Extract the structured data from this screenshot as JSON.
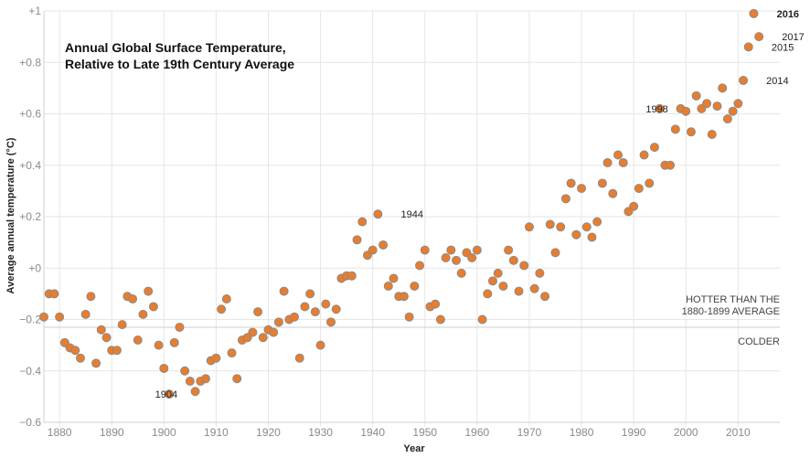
{
  "chart_data": {
    "type": "scatter",
    "title_lines": [
      "Annual Global Surface Temperature,",
      "Relative to Late 19th Century Average"
    ],
    "xlabel": "Year",
    "ylabel": "Average annual temperature (°C)",
    "xlim": [
      1877,
      2018
    ],
    "ylim": [
      -0.6,
      1
    ],
    "x_ticks": [
      {
        "value": 1880,
        "label": "1880"
      },
      {
        "value": 1890,
        "label": "1890"
      },
      {
        "value": 1900,
        "label": "1900"
      },
      {
        "value": 1910,
        "label": "1910"
      },
      {
        "value": 1920,
        "label": "1920"
      },
      {
        "value": 1930,
        "label": "1930"
      },
      {
        "value": 1940,
        "label": "1940"
      },
      {
        "value": 1950,
        "label": "1950"
      },
      {
        "value": 1960,
        "label": "1960"
      },
      {
        "value": 1970,
        "label": "1970"
      },
      {
        "value": 1980,
        "label": "1980"
      },
      {
        "value": 1990,
        "label": "1990"
      },
      {
        "value": 2000,
        "label": "2000"
      },
      {
        "value": 2010,
        "label": "2010"
      }
    ],
    "y_ticks": [
      {
        "value": 1,
        "label": "+1"
      },
      {
        "value": 0.8,
        "label": "+0.8"
      },
      {
        "value": 0.6,
        "label": "+0.6"
      },
      {
        "value": 0.4,
        "label": "+0.4"
      },
      {
        "value": 0.2,
        "label": "+0.2"
      },
      {
        "value": 0,
        "label": "+0"
      },
      {
        "value": -0.2,
        "label": "−0.2"
      },
      {
        "value": -0.4,
        "label": "−0.4"
      },
      {
        "value": -0.6,
        "label": "−0.6"
      }
    ],
    "grid": true,
    "reference_line": {
      "y": -0.23,
      "label_above": [
        "HOTTER THAN THE",
        "1880-1899 AVERAGE"
      ],
      "label_below": "COLDER"
    },
    "colors": {
      "point_fill": "#e87d2d",
      "point_stroke": "#8a8a8a",
      "grid": "#e6e6e6",
      "reference": "#c8c8c8"
    },
    "points": [
      {
        "x": 1877,
        "y": -0.19
      },
      {
        "x": 1878,
        "y": -0.1
      },
      {
        "x": 1879,
        "y": -0.1
      },
      {
        "x": 1880,
        "y": -0.19
      },
      {
        "x": 1881,
        "y": -0.29
      },
      {
        "x": 1882,
        "y": -0.31
      },
      {
        "x": 1883,
        "y": -0.32
      },
      {
        "x": 1884,
        "y": -0.35
      },
      {
        "x": 1885,
        "y": -0.18
      },
      {
        "x": 1886,
        "y": -0.11
      },
      {
        "x": 1887,
        "y": -0.37
      },
      {
        "x": 1888,
        "y": -0.24
      },
      {
        "x": 1889,
        "y": -0.27
      },
      {
        "x": 1890,
        "y": -0.32
      },
      {
        "x": 1891,
        "y": -0.32
      },
      {
        "x": 1892,
        "y": -0.22
      },
      {
        "x": 1893,
        "y": -0.11
      },
      {
        "x": 1894,
        "y": -0.12
      },
      {
        "x": 1895,
        "y": -0.28
      },
      {
        "x": 1896,
        "y": -0.18
      },
      {
        "x": 1897,
        "y": -0.09
      },
      {
        "x": 1898,
        "y": -0.15
      },
      {
        "x": 1899,
        "y": -0.3
      },
      {
        "x": 1900,
        "y": -0.39
      },
      {
        "x": 1901,
        "y": -0.49
      },
      {
        "x": 1902,
        "y": -0.29
      },
      {
        "x": 1903,
        "y": -0.23
      },
      {
        "x": 1904,
        "y": -0.4
      },
      {
        "x": 1905,
        "y": -0.44
      },
      {
        "x": 1906,
        "y": -0.48
      },
      {
        "x": 1907,
        "y": -0.44
      },
      {
        "x": 1908,
        "y": -0.43
      },
      {
        "x": 1909,
        "y": -0.36
      },
      {
        "x": 1910,
        "y": -0.35
      },
      {
        "x": 1911,
        "y": -0.16
      },
      {
        "x": 1912,
        "y": -0.12
      },
      {
        "x": 1913,
        "y": -0.33
      },
      {
        "x": 1914,
        "y": -0.43
      },
      {
        "x": 1915,
        "y": -0.28
      },
      {
        "x": 1916,
        "y": -0.27
      },
      {
        "x": 1917,
        "y": -0.25
      },
      {
        "x": 1918,
        "y": -0.17
      },
      {
        "x": 1919,
        "y": -0.27
      },
      {
        "x": 1920,
        "y": -0.24
      },
      {
        "x": 1921,
        "y": -0.25
      },
      {
        "x": 1922,
        "y": -0.21
      },
      {
        "x": 1923,
        "y": -0.09
      },
      {
        "x": 1924,
        "y": -0.2
      },
      {
        "x": 1925,
        "y": -0.19
      },
      {
        "x": 1926,
        "y": -0.35
      },
      {
        "x": 1927,
        "y": -0.15
      },
      {
        "x": 1928,
        "y": -0.1
      },
      {
        "x": 1929,
        "y": -0.17
      },
      {
        "x": 1930,
        "y": -0.3
      },
      {
        "x": 1931,
        "y": -0.14
      },
      {
        "x": 1932,
        "y": -0.21
      },
      {
        "x": 1933,
        "y": -0.16
      },
      {
        "x": 1934,
        "y": -0.04
      },
      {
        "x": 1935,
        "y": -0.03
      },
      {
        "x": 1936,
        "y": -0.03
      },
      {
        "x": 1937,
        "y": 0.11
      },
      {
        "x": 1938,
        "y": 0.18
      },
      {
        "x": 1939,
        "y": 0.05
      },
      {
        "x": 1940,
        "y": 0.07
      },
      {
        "x": 1941,
        "y": 0.21
      },
      {
        "x": 1942,
        "y": 0.09
      },
      {
        "x": 1943,
        "y": -0.07
      },
      {
        "x": 1944,
        "y": -0.04
      },
      {
        "x": 1945,
        "y": -0.11
      },
      {
        "x": 1946,
        "y": -0.11
      },
      {
        "x": 1947,
        "y": -0.19
      },
      {
        "x": 1948,
        "y": -0.07
      },
      {
        "x": 1949,
        "y": 0.01
      },
      {
        "x": 1950,
        "y": 0.07
      },
      {
        "x": 1951,
        "y": -0.15
      },
      {
        "x": 1952,
        "y": -0.14
      },
      {
        "x": 1953,
        "y": -0.2
      },
      {
        "x": 1954,
        "y": 0.04
      },
      {
        "x": 1955,
        "y": 0.07
      },
      {
        "x": 1956,
        "y": 0.03
      },
      {
        "x": 1957,
        "y": -0.02
      },
      {
        "x": 1958,
        "y": 0.06
      },
      {
        "x": 1959,
        "y": 0.04
      },
      {
        "x": 1960,
        "y": 0.07
      },
      {
        "x": 1961,
        "y": -0.2
      },
      {
        "x": 1962,
        "y": -0.1
      },
      {
        "x": 1963,
        "y": -0.05
      },
      {
        "x": 1964,
        "y": -0.02
      },
      {
        "x": 1965,
        "y": -0.07
      },
      {
        "x": 1966,
        "y": 0.07
      },
      {
        "x": 1967,
        "y": 0.03
      },
      {
        "x": 1968,
        "y": -0.09
      },
      {
        "x": 1969,
        "y": 0.01
      },
      {
        "x": 1970,
        "y": 0.16
      },
      {
        "x": 1971,
        "y": -0.08
      },
      {
        "x": 1972,
        "y": -0.02
      },
      {
        "x": 1973,
        "y": -0.11
      },
      {
        "x": 1974,
        "y": 0.17
      },
      {
        "x": 1975,
        "y": 0.06
      },
      {
        "x": 1976,
        "y": 0.16
      },
      {
        "x": 1977,
        "y": 0.27
      },
      {
        "x": 1978,
        "y": 0.33
      },
      {
        "x": 1979,
        "y": 0.13
      },
      {
        "x": 1980,
        "y": 0.31
      },
      {
        "x": 1981,
        "y": 0.16
      },
      {
        "x": 1982,
        "y": 0.12
      },
      {
        "x": 1983,
        "y": 0.18
      },
      {
        "x": 1984,
        "y": 0.33
      },
      {
        "x": 1985,
        "y": 0.41
      },
      {
        "x": 1986,
        "y": 0.29
      },
      {
        "x": 1987,
        "y": 0.44
      },
      {
        "x": 1988,
        "y": 0.41
      },
      {
        "x": 1989,
        "y": 0.22
      },
      {
        "x": 1990,
        "y": 0.24
      },
      {
        "x": 1991,
        "y": 0.31
      },
      {
        "x": 1992,
        "y": 0.44
      },
      {
        "x": 1993,
        "y": 0.33
      },
      {
        "x": 1994,
        "y": 0.47
      },
      {
        "x": 1995,
        "y": 0.62
      },
      {
        "x": 1996,
        "y": 0.4
      },
      {
        "x": 1997,
        "y": 0.4
      },
      {
        "x": 1998,
        "y": 0.54
      },
      {
        "x": 1999,
        "y": 0.62
      },
      {
        "x": 2000,
        "y": 0.61
      },
      {
        "x": 2001,
        "y": 0.53
      },
      {
        "x": 2002,
        "y": 0.67
      },
      {
        "x": 2003,
        "y": 0.62
      },
      {
        "x": 2004,
        "y": 0.64
      },
      {
        "x": 2005,
        "y": 0.52
      },
      {
        "x": 2006,
        "y": 0.63
      },
      {
        "x": 2007,
        "y": 0.7
      },
      {
        "x": 2008,
        "y": 0.58
      },
      {
        "x": 2009,
        "y": 0.61
      },
      {
        "x": 2010,
        "y": 0.64
      },
      {
        "x": 2011,
        "y": 0.73
      },
      {
        "x": 2012,
        "y": 0.86
      },
      {
        "x": 2013,
        "y": 0.99
      },
      {
        "x": 2014,
        "y": 0.9
      }
    ],
    "annotations": [
      {
        "text": "1904",
        "x": 1904,
        "y": -0.49,
        "anchor": "end",
        "bold": false
      },
      {
        "text": "1944",
        "x": 1944,
        "y": 0.21,
        "anchor": "start",
        "bold": false
      },
      {
        "text": "1998",
        "x": 1998,
        "y": 0.62,
        "anchor": "end",
        "bold": false
      },
      {
        "text": "2014",
        "x": 2014,
        "y": 0.73,
        "anchor": "start",
        "bold": false
      },
      {
        "text": "2015",
        "x": 2015,
        "y": 0.86,
        "anchor": "start",
        "bold": false
      },
      {
        "text": "2016",
        "x": 2016,
        "y": 0.99,
        "anchor": "start",
        "bold": true
      },
      {
        "text": "2017",
        "x": 2017,
        "y": 0.9,
        "anchor": "start",
        "bold": false
      }
    ]
  }
}
